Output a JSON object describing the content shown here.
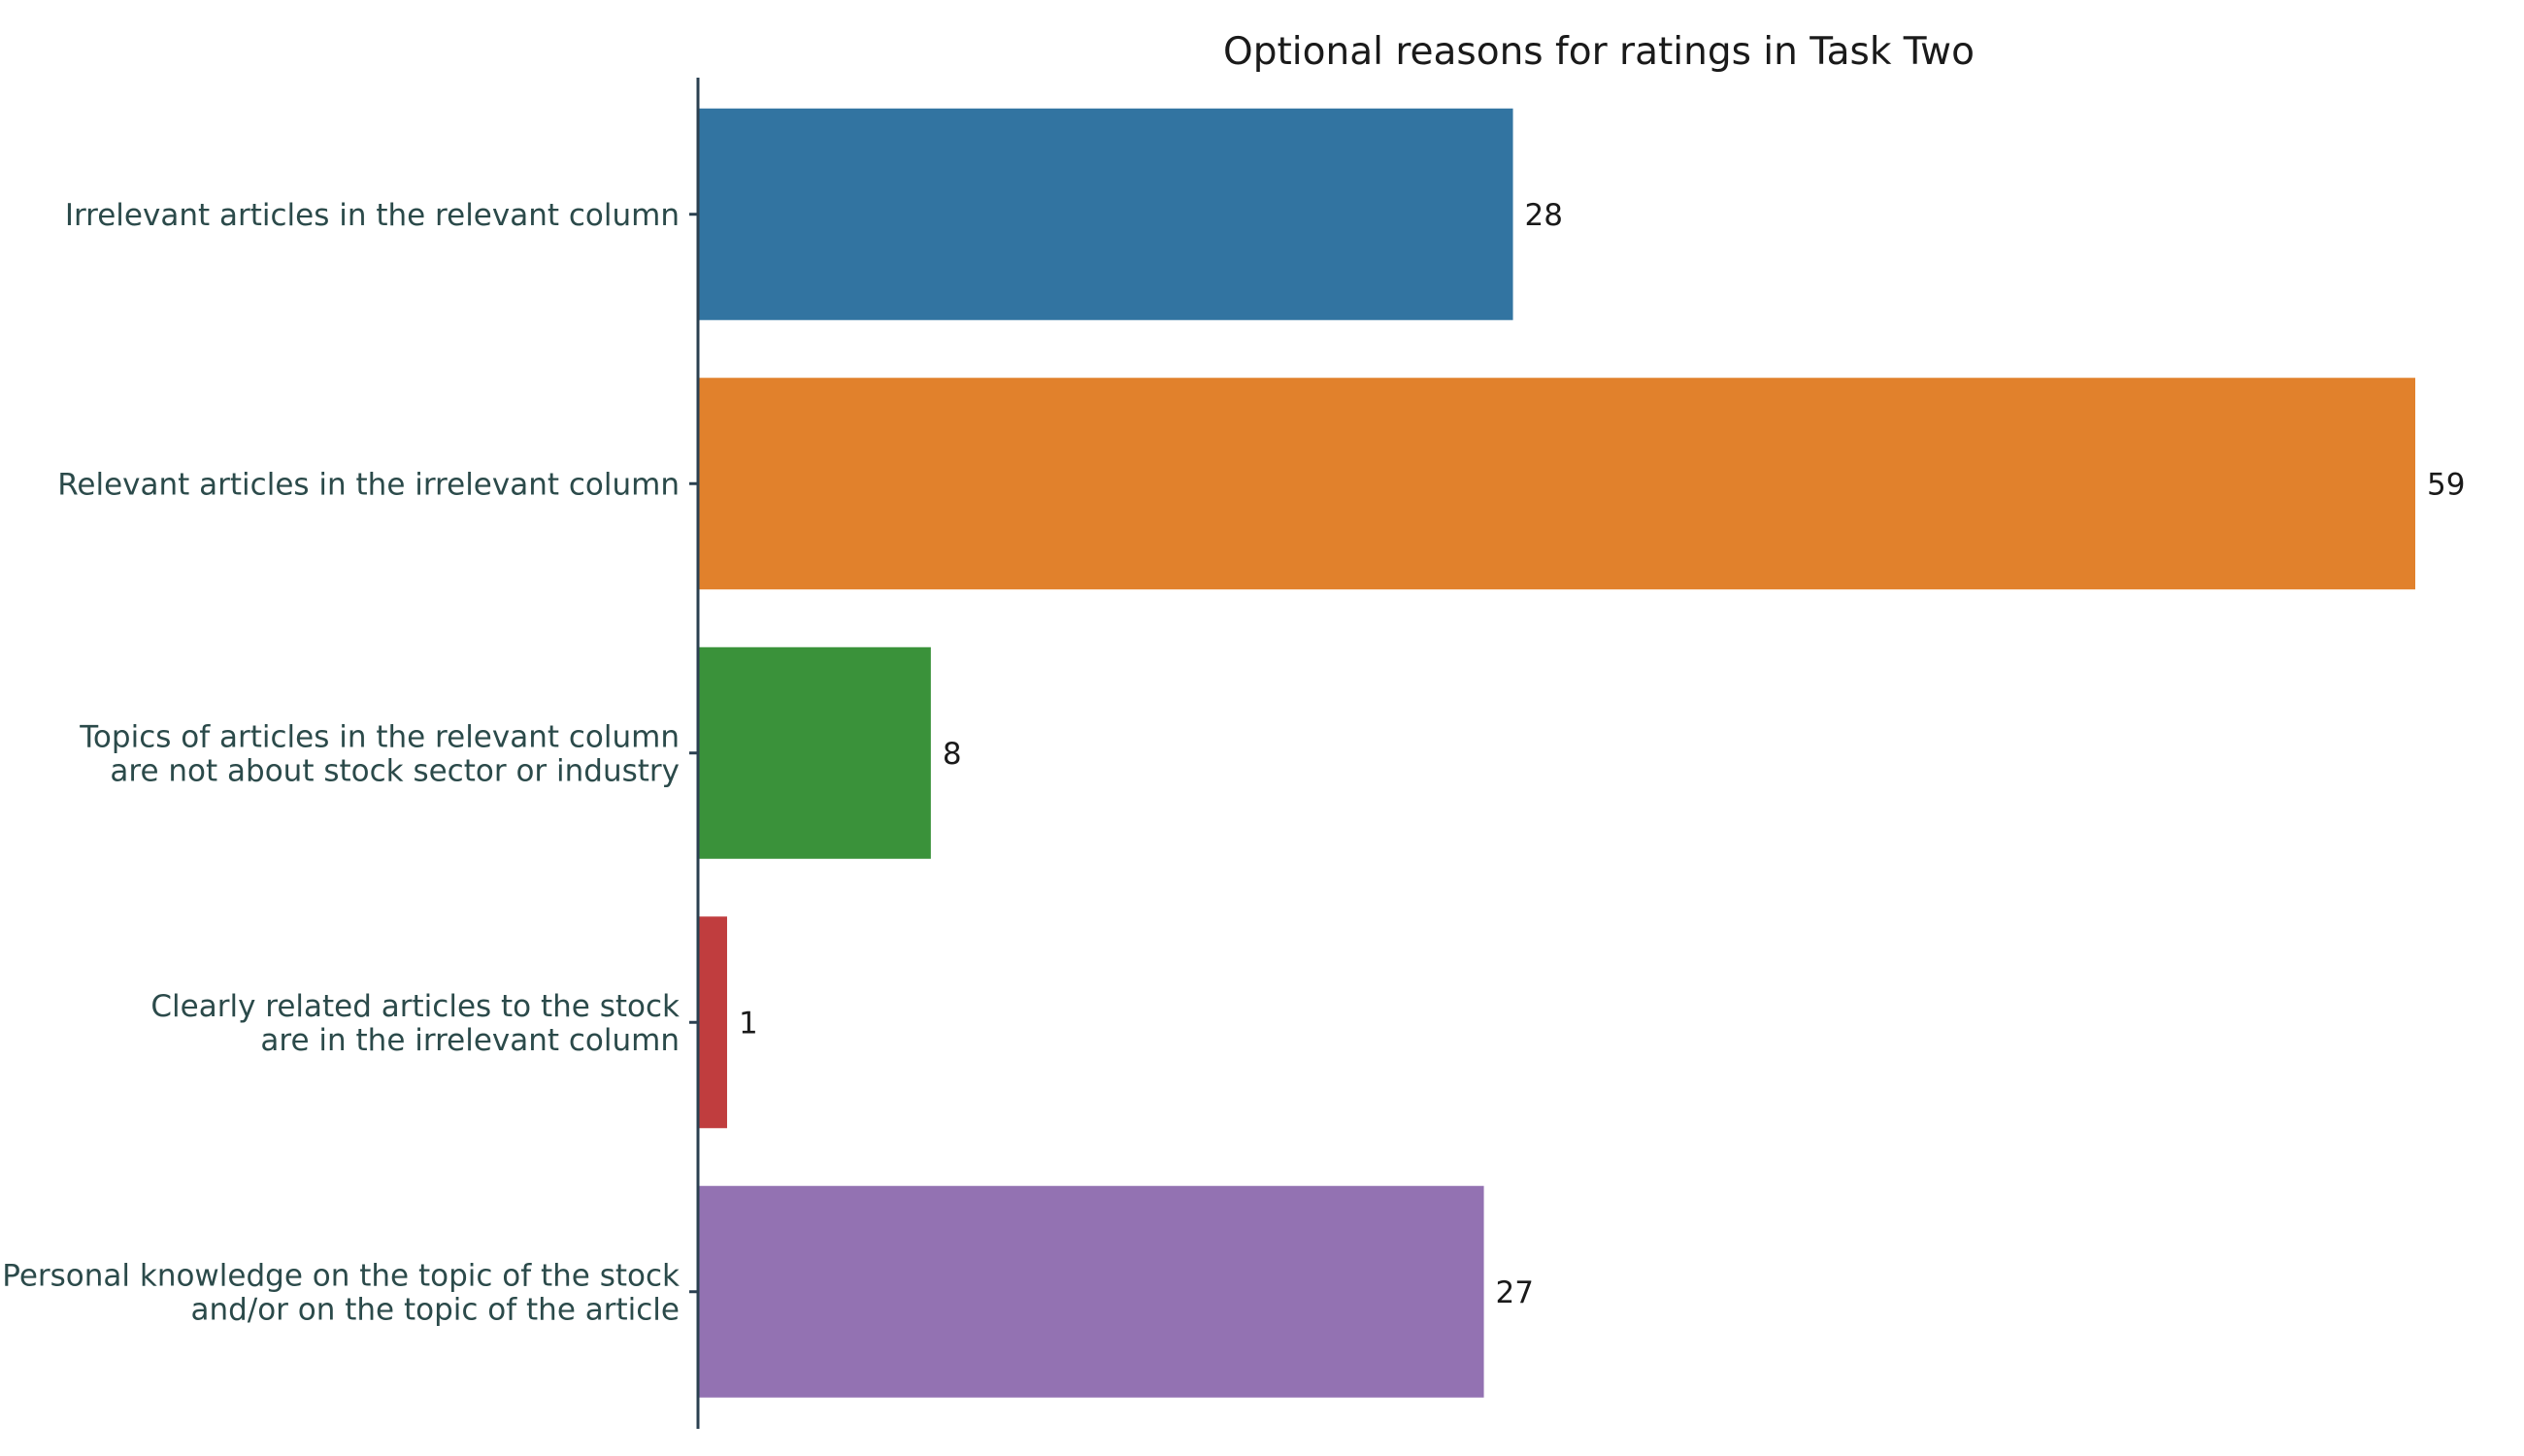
{
  "chart_data": {
    "type": "bar",
    "orientation": "horizontal",
    "title": "Optional reasons for ratings in Task Two",
    "xlabel": "",
    "ylabel": "",
    "grid": false,
    "xlim": [
      0,
      59
    ],
    "categories": [
      [
        "Irrelevant articles in the relevant column"
      ],
      [
        "Relevant articles in the irrelevant column"
      ],
      [
        "Topics of articles in the relevant column",
        "are not about stock sector or industry"
      ],
      [
        "Clearly related articles to the stock",
        "are in the irrelevant column"
      ],
      [
        "Personal knowledge on the topic of the stock",
        "and/or on the topic of the article"
      ]
    ],
    "values": [
      28,
      59,
      8,
      1,
      27
    ],
    "colors": [
      "#3274a1",
      "#e1812c",
      "#3a923a",
      "#c03d3e",
      "#9372b2"
    ]
  }
}
